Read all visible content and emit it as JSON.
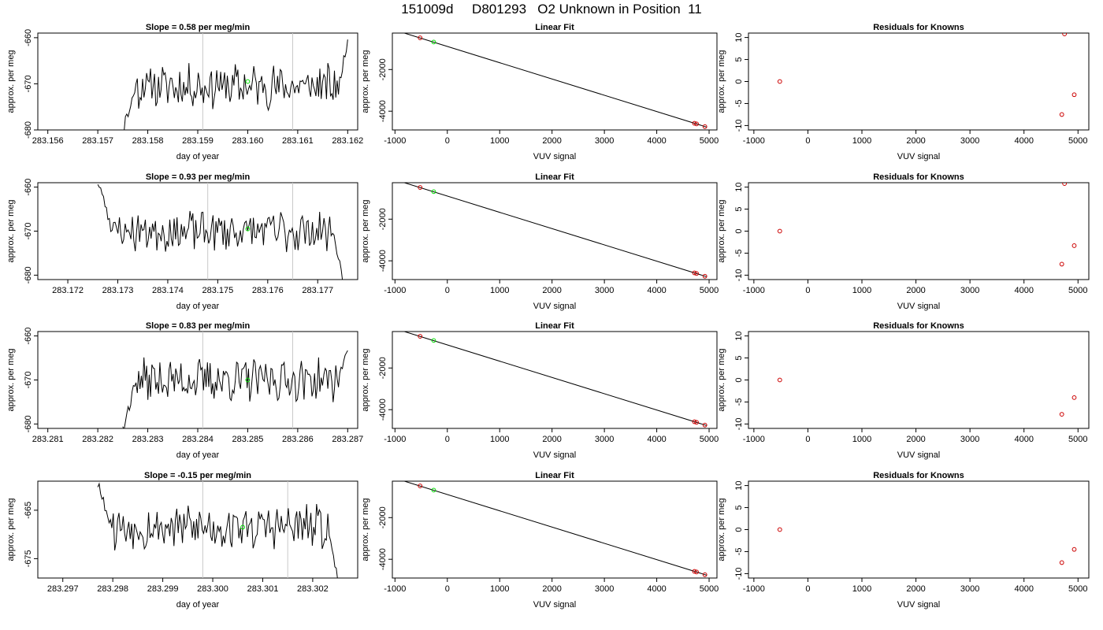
{
  "title": "151009d     D801293   O2 Unknown in Position  11",
  "chart_data": [
    {
      "row": 0,
      "col": 0,
      "type": "line",
      "title": "Slope =  0.58  per meg/min",
      "xlabel": "day of year",
      "ylabel": "approx. per meg",
      "xlim": [
        283.1558,
        283.1622
      ],
      "ylim": [
        -680,
        -659
      ],
      "xticks": [
        283.156,
        283.157,
        283.158,
        283.159,
        283.16,
        283.161,
        283.162
      ],
      "xtick_labels": [
        "283.156",
        "283.157",
        "283.158",
        "283.159",
        "283.160",
        "283.161",
        "283.162"
      ],
      "yticks": [
        -680,
        -670,
        -660
      ],
      "ytick_labels": [
        "-680",
        "-670",
        "-660"
      ],
      "vlines": [
        283.1591,
        283.1609
      ],
      "start": 283.1575,
      "end": 283.162,
      "base": -670.5,
      "start_value": -680,
      "end_value": -660.5,
      "seed": 11,
      "marker": {
        "x": 283.16,
        "y": -669.5,
        "color": "#00e000"
      }
    },
    {
      "row": 0,
      "col": 1,
      "type": "scatter",
      "title": "Linear Fit",
      "xlabel": "VUV signal",
      "ylabel": "approx. per meg",
      "xlim": [
        -1050,
        5150
      ],
      "ylim": [
        -4900,
        -250
      ],
      "xticks": [
        -1000,
        0,
        1000,
        2000,
        3000,
        4000,
        5000
      ],
      "xtick_labels": [
        "-1000",
        "0",
        "1000",
        "2000",
        "3000",
        "4000",
        "5000"
      ],
      "yticks": [
        -4000,
        -2000
      ],
      "ytick_labels": [
        "-4000",
        "-2000"
      ],
      "line": [
        [
          -820,
          -250
        ],
        [
          4950,
          -4760
        ]
      ],
      "points": [
        {
          "x": -520,
          "y": -480,
          "color": "#cc0000"
        },
        {
          "x": -260,
          "y": -680,
          "color": "#00e000"
        },
        {
          "x": 4720,
          "y": -4580,
          "color": "#cc0000"
        },
        {
          "x": 4760,
          "y": -4610,
          "color": "#cc0000"
        },
        {
          "x": 4920,
          "y": -4740,
          "color": "#cc0000"
        }
      ]
    },
    {
      "row": 0,
      "col": 2,
      "type": "scatter",
      "title": "Residuals for Knowns",
      "xlabel": "VUV signal",
      "ylabel": "approx. per meg",
      "xlim": [
        -1100,
        5200
      ],
      "ylim": [
        -11,
        11
      ],
      "xticks": [
        -1000,
        0,
        1000,
        2000,
        3000,
        4000,
        5000
      ],
      "xtick_labels": [
        "-1000",
        "0",
        "1000",
        "2000",
        "3000",
        "4000",
        "5000"
      ],
      "yticks": [
        -10,
        -5,
        0,
        5,
        10
      ],
      "ytick_labels": [
        "-10",
        "-5",
        "0",
        "5",
        "10"
      ],
      "points": [
        {
          "x": -520,
          "y": 0,
          "color": "#cc0000"
        },
        {
          "x": 4750,
          "y": 10.8,
          "color": "#cc0000"
        },
        {
          "x": 4700,
          "y": -7.5,
          "color": "#cc0000"
        },
        {
          "x": 4930,
          "y": -3,
          "color": "#cc0000"
        }
      ]
    },
    {
      "row": 1,
      "col": 0,
      "type": "line",
      "title": "Slope =  0.93  per meg/min",
      "xlabel": "day of year",
      "ylabel": "approx. per meg",
      "xlim": [
        283.1714,
        283.1778
      ],
      "ylim": [
        -681,
        -659
      ],
      "xticks": [
        283.172,
        283.173,
        283.174,
        283.175,
        283.176,
        283.177
      ],
      "xtick_labels": [
        "283.172",
        "283.173",
        "283.174",
        "283.175",
        "283.176",
        "283.177"
      ],
      "yticks": [
        -680,
        -670,
        -660
      ],
      "ytick_labels": [
        "-680",
        "-670",
        "-660"
      ],
      "vlines": [
        283.1748,
        283.1765
      ],
      "start": 283.1726,
      "end": 283.1775,
      "base": -670,
      "start_value": -659,
      "end_value": -681,
      "seed": 23,
      "marker": {
        "x": 283.1756,
        "y": -669.5,
        "color": "#00e000"
      }
    },
    {
      "row": 1,
      "col": 1,
      "type": "scatter",
      "title": "Linear Fit",
      "xlabel": "VUV signal",
      "ylabel": "approx. per meg",
      "xlim": [
        -1050,
        5150
      ],
      "ylim": [
        -4900,
        -250
      ],
      "xticks": [
        -1000,
        0,
        1000,
        2000,
        3000,
        4000,
        5000
      ],
      "xtick_labels": [
        "-1000",
        "0",
        "1000",
        "2000",
        "3000",
        "4000",
        "5000"
      ],
      "yticks": [
        -4000,
        -2000
      ],
      "ytick_labels": [
        "-4000",
        "-2000"
      ],
      "line": [
        [
          -820,
          -250
        ],
        [
          4950,
          -4760
        ]
      ],
      "points": [
        {
          "x": -520,
          "y": -480,
          "color": "#cc0000"
        },
        {
          "x": -260,
          "y": -680,
          "color": "#00e000"
        },
        {
          "x": 4720,
          "y": -4580,
          "color": "#cc0000"
        },
        {
          "x": 4760,
          "y": -4610,
          "color": "#cc0000"
        },
        {
          "x": 4920,
          "y": -4740,
          "color": "#cc0000"
        }
      ]
    },
    {
      "row": 1,
      "col": 2,
      "type": "scatter",
      "title": "Residuals for Knowns",
      "xlabel": "VUV signal",
      "ylabel": "approx. per meg",
      "xlim": [
        -1100,
        5200
      ],
      "ylim": [
        -11,
        11
      ],
      "xticks": [
        -1000,
        0,
        1000,
        2000,
        3000,
        4000,
        5000
      ],
      "xtick_labels": [
        "-1000",
        "0",
        "1000",
        "2000",
        "3000",
        "4000",
        "5000"
      ],
      "yticks": [
        -10,
        -5,
        0,
        5,
        10
      ],
      "ytick_labels": [
        "-10",
        "-5",
        "0",
        "5",
        "10"
      ],
      "points": [
        {
          "x": -520,
          "y": 0,
          "color": "#cc0000"
        },
        {
          "x": 4750,
          "y": 10.8,
          "color": "#cc0000"
        },
        {
          "x": 4700,
          "y": -7.5,
          "color": "#cc0000"
        },
        {
          "x": 4930,
          "y": -3.3,
          "color": "#cc0000"
        }
      ]
    },
    {
      "row": 2,
      "col": 0,
      "type": "line",
      "title": "Slope =  0.83  per meg/min",
      "xlabel": "day of year",
      "ylabel": "approx. per meg",
      "xlim": [
        283.2808,
        283.2872
      ],
      "ylim": [
        -681,
        -659
      ],
      "xticks": [
        283.281,
        283.282,
        283.283,
        283.284,
        283.285,
        283.286,
        283.287
      ],
      "xtick_labels": [
        "283.281",
        "283.282",
        "283.283",
        "283.284",
        "283.285",
        "283.286",
        "283.287"
      ],
      "yticks": [
        -680,
        -670,
        -660
      ],
      "ytick_labels": [
        "-680",
        "-670",
        "-660"
      ],
      "vlines": [
        283.2841,
        283.2859
      ],
      "start": 283.2825,
      "end": 283.287,
      "base": -670,
      "start_value": -681,
      "end_value": -662.5,
      "seed": 37,
      "marker": {
        "x": 283.285,
        "y": -670,
        "color": "#00e000"
      }
    },
    {
      "row": 2,
      "col": 1,
      "type": "scatter",
      "title": "Linear Fit",
      "xlabel": "VUV signal",
      "ylabel": "approx. per meg",
      "xlim": [
        -1050,
        5150
      ],
      "ylim": [
        -4900,
        -250
      ],
      "xticks": [
        -1000,
        0,
        1000,
        2000,
        3000,
        4000,
        5000
      ],
      "xtick_labels": [
        "-1000",
        "0",
        "1000",
        "2000",
        "3000",
        "4000",
        "5000"
      ],
      "yticks": [
        -4000,
        -2000
      ],
      "ytick_labels": [
        "-4000",
        "-2000"
      ],
      "line": [
        [
          -820,
          -250
        ],
        [
          4950,
          -4760
        ]
      ],
      "points": [
        {
          "x": -520,
          "y": -480,
          "color": "#cc0000"
        },
        {
          "x": -260,
          "y": -680,
          "color": "#00e000"
        },
        {
          "x": 4720,
          "y": -4580,
          "color": "#cc0000"
        },
        {
          "x": 4760,
          "y": -4610,
          "color": "#cc0000"
        },
        {
          "x": 4920,
          "y": -4740,
          "color": "#cc0000"
        }
      ]
    },
    {
      "row": 2,
      "col": 2,
      "type": "scatter",
      "title": "Residuals for Knowns",
      "xlabel": "VUV signal",
      "ylabel": "approx. per meg",
      "xlim": [
        -1100,
        5200
      ],
      "ylim": [
        -11,
        11
      ],
      "xticks": [
        -1000,
        0,
        1000,
        2000,
        3000,
        4000,
        5000
      ],
      "xtick_labels": [
        "-1000",
        "0",
        "1000",
        "2000",
        "3000",
        "4000",
        "5000"
      ],
      "yticks": [
        -10,
        -5,
        0,
        5,
        10
      ],
      "ytick_labels": [
        "-10",
        "-5",
        "0",
        "5",
        "10"
      ],
      "points": [
        {
          "x": -520,
          "y": 0,
          "color": "#cc0000"
        },
        {
          "x": 4700,
          "y": -7.8,
          "color": "#cc0000"
        },
        {
          "x": 4930,
          "y": -4,
          "color": "#cc0000"
        }
      ]
    },
    {
      "row": 3,
      "col": 0,
      "type": "line",
      "title": "Slope =  -0.15  per meg/min",
      "xlabel": "day of year",
      "ylabel": "approx. per meg",
      "xlim": [
        283.2965,
        283.3029
      ],
      "ylim": [
        -679,
        -659
      ],
      "xticks": [
        283.297,
        283.298,
        283.299,
        283.3,
        283.301,
        283.302
      ],
      "xtick_labels": [
        "283.297",
        "283.298",
        "283.299",
        "283.300",
        "283.301",
        "283.302"
      ],
      "yticks": [
        -675,
        -665
      ],
      "ytick_labels": [
        "-675",
        "-665"
      ],
      "vlines": [
        283.2998,
        283.3015
      ],
      "start": 283.2977,
      "end": 283.3025,
      "base": -668.5,
      "start_value": -659,
      "end_value": -679,
      "seed": 53,
      "marker": {
        "x": 283.3006,
        "y": -668.5,
        "color": "#00e000"
      }
    },
    {
      "row": 3,
      "col": 1,
      "type": "scatter",
      "title": "Linear Fit",
      "xlabel": "VUV signal",
      "ylabel": "approx. per meg",
      "xlim": [
        -1050,
        5150
      ],
      "ylim": [
        -4900,
        -250
      ],
      "xticks": [
        -1000,
        0,
        1000,
        2000,
        3000,
        4000,
        5000
      ],
      "xtick_labels": [
        "-1000",
        "0",
        "1000",
        "2000",
        "3000",
        "4000",
        "5000"
      ],
      "yticks": [
        -4000,
        -2000
      ],
      "ytick_labels": [
        "-4000",
        "-2000"
      ],
      "line": [
        [
          -820,
          -250
        ],
        [
          4950,
          -4760
        ]
      ],
      "points": [
        {
          "x": -520,
          "y": -480,
          "color": "#cc0000"
        },
        {
          "x": -260,
          "y": -680,
          "color": "#00e000"
        },
        {
          "x": 4720,
          "y": -4580,
          "color": "#cc0000"
        },
        {
          "x": 4760,
          "y": -4610,
          "color": "#cc0000"
        },
        {
          "x": 4920,
          "y": -4740,
          "color": "#cc0000"
        }
      ]
    },
    {
      "row": 3,
      "col": 2,
      "type": "scatter",
      "title": "Residuals for Knowns",
      "xlabel": "VUV signal",
      "ylabel": "approx. per meg",
      "xlim": [
        -1100,
        5200
      ],
      "ylim": [
        -11,
        11
      ],
      "xticks": [
        -1000,
        0,
        1000,
        2000,
        3000,
        4000,
        5000
      ],
      "xtick_labels": [
        "-1000",
        "0",
        "1000",
        "2000",
        "3000",
        "4000",
        "5000"
      ],
      "yticks": [
        -10,
        -5,
        0,
        5,
        10
      ],
      "ytick_labels": [
        "-10",
        "-5",
        "0",
        "5",
        "10"
      ],
      "points": [
        {
          "x": -520,
          "y": 0,
          "color": "#cc0000"
        },
        {
          "x": 4700,
          "y": -7.5,
          "color": "#cc0000"
        },
        {
          "x": 4930,
          "y": -4.5,
          "color": "#cc0000"
        }
      ]
    }
  ]
}
